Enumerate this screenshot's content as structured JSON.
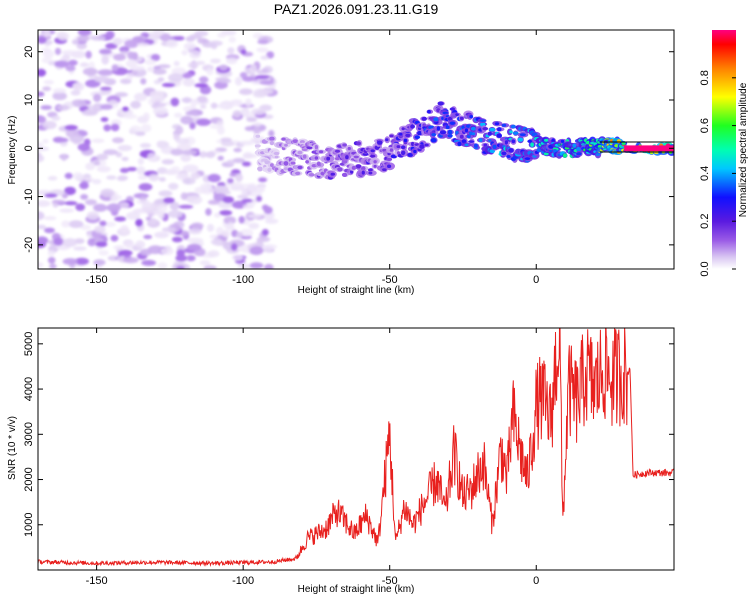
{
  "title": "PAZ1.2026.091.23.11.G19",
  "colors": {
    "snr_line": "#e8201e",
    "axes": "#000000",
    "background": "#ffffff"
  },
  "chart_data": [
    {
      "type": "heatmap",
      "name": "spectrogram",
      "xlabel": "Height of straight line (km)",
      "ylabel": "Frequency (Hz)",
      "xlim": [
        -170,
        47
      ],
      "ylim": [
        -25,
        24.5
      ],
      "x_ticks": [
        -150,
        -100,
        -50,
        0
      ],
      "x_tick_labels": [
        "-150",
        "-100",
        "-50",
        "0"
      ],
      "y_ticks": [
        -20,
        -10,
        0,
        10,
        20
      ],
      "y_tick_labels": [
        "-20",
        "-10",
        "0",
        "10",
        "20"
      ],
      "colorbar": {
        "label": "Normalized spectral amplitude",
        "range": [
          0.0,
          1.0
        ],
        "ticks": [
          0.0,
          0.2,
          0.4,
          0.6,
          0.8
        ],
        "tick_labels": [
          "0.0",
          "0.2",
          "0.4",
          "0.6",
          "0.8"
        ]
      },
      "noise_region": {
        "x_range": [
          -170,
          -90
        ],
        "freq_range": [
          -25,
          24.5
        ],
        "amplitude_range": [
          0.02,
          0.12
        ]
      },
      "signal_ridge": {
        "x": [
          -95,
          -80,
          -70,
          -60,
          -50,
          -40,
          -32,
          -25,
          -15,
          -5,
          5,
          15,
          25,
          35,
          47
        ],
        "freq": [
          -1,
          -2,
          -3,
          -2,
          -1,
          3,
          6,
          4,
          2,
          1,
          0,
          0,
          0.5,
          0,
          0
        ],
        "amplitude": [
          0.08,
          0.15,
          0.2,
          0.22,
          0.25,
          0.3,
          0.35,
          0.35,
          0.4,
          0.45,
          0.5,
          0.55,
          0.75,
          0.95,
          1.0
        ]
      }
    },
    {
      "type": "line",
      "name": "snr",
      "xlabel": "Height of straight line (km)",
      "ylabel": "SNR (10 * v/v)",
      "xlim": [
        -170,
        47
      ],
      "ylim": [
        0,
        5350
      ],
      "x_ticks": [
        -150,
        -100,
        -50,
        0
      ],
      "x_tick_labels": [
        "-150",
        "-100",
        "-50",
        "0"
      ],
      "y_ticks": [
        1000,
        2000,
        3000,
        4000,
        5000
      ],
      "y_tick_labels": [
        "1000",
        "2000",
        "3000",
        "4000",
        "5000"
      ],
      "series": [
        {
          "name": "SNR",
          "x": [
            -170,
            -150,
            -130,
            -110,
            -90,
            -82,
            -78,
            -72,
            -68,
            -62,
            -58,
            -54,
            -52,
            -50,
            -48,
            -45,
            -42,
            -38,
            -34,
            -31,
            -28,
            -25,
            -22,
            -18,
            -15,
            -12,
            -10,
            -8,
            -5,
            -3,
            0,
            2,
            5,
            7,
            8,
            9,
            11,
            14,
            17,
            20,
            23,
            26,
            29,
            31,
            32,
            33,
            38,
            42,
            47
          ],
          "y": [
            180,
            150,
            170,
            150,
            180,
            250,
            700,
            900,
            1300,
            800,
            1200,
            600,
            1800,
            3000,
            600,
            1400,
            1000,
            1500,
            2000,
            1300,
            2600,
            1600,
            1800,
            2400,
            1000,
            2700,
            2000,
            3400,
            2500,
            2000,
            3600,
            3800,
            3300,
            4800,
            5300,
            1000,
            4000,
            3700,
            4400,
            4000,
            4500,
            4200,
            4400,
            4300,
            4500,
            2100,
            2150,
            2150,
            2150
          ]
        }
      ]
    }
  ]
}
